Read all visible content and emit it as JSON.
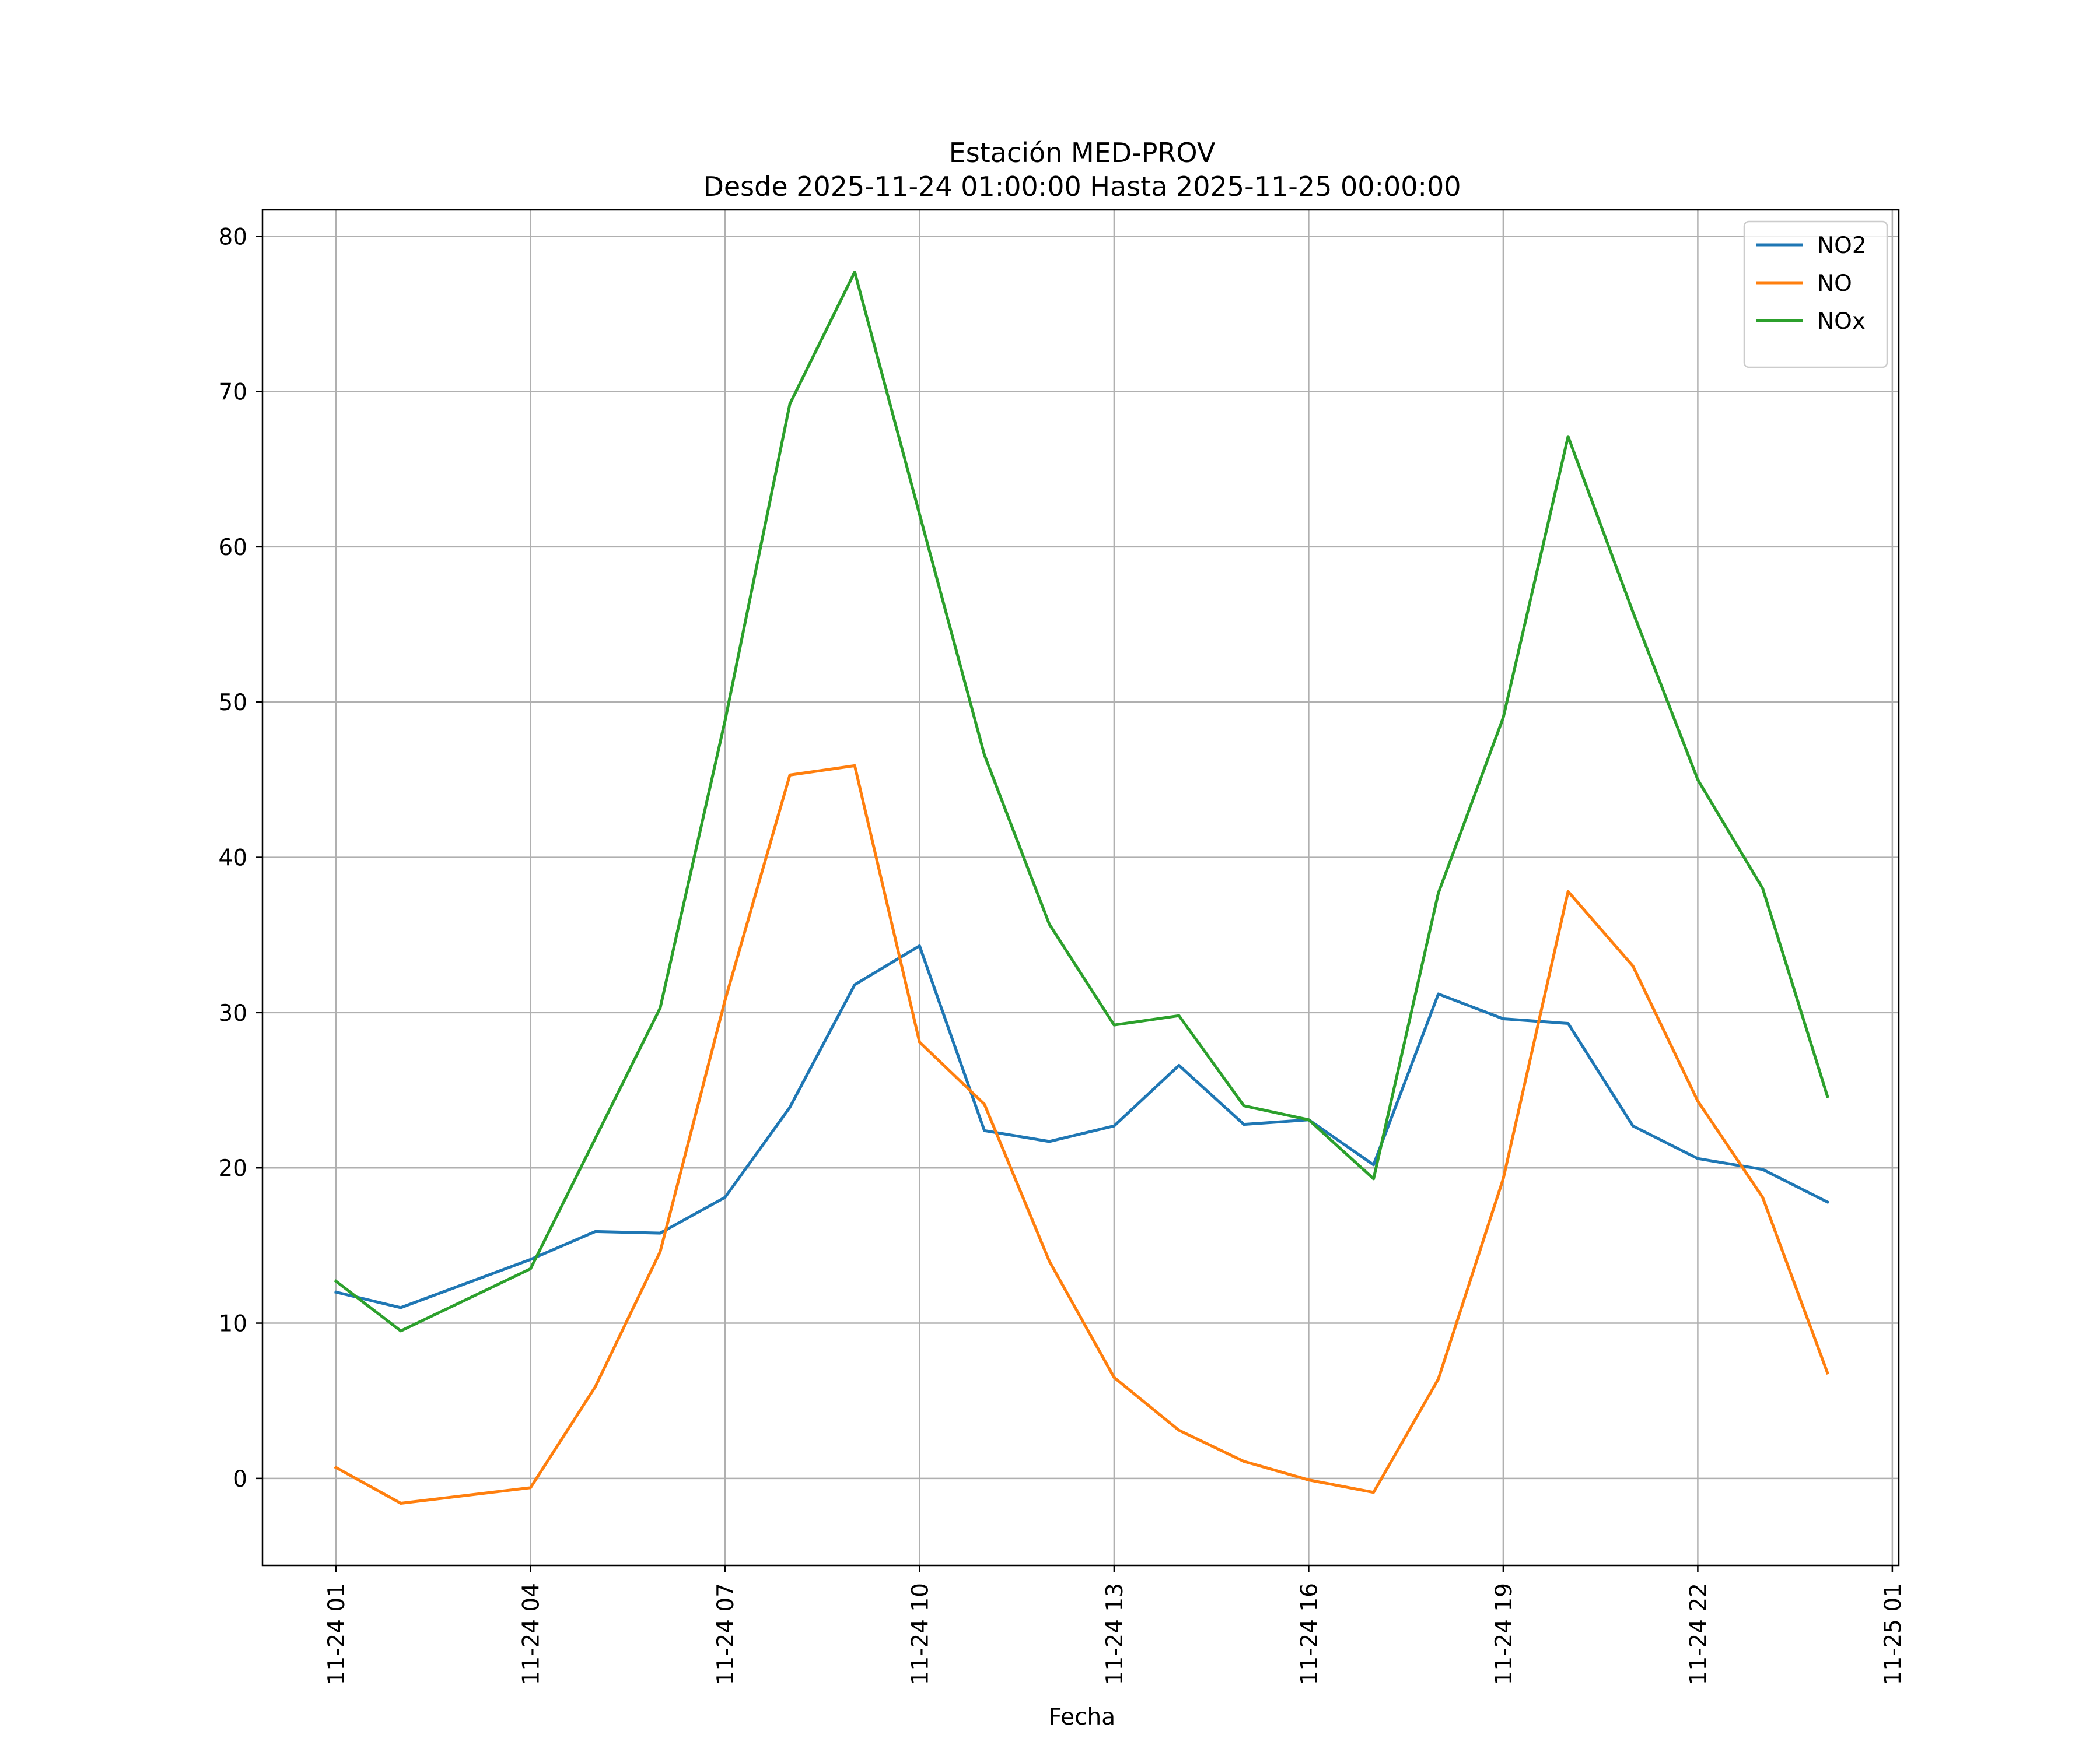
{
  "chart_data": {
    "type": "line",
    "title": "Estación MED-PROV",
    "subtitle": "Desde 2025-11-24 01:00:00 Hasta 2025-11-25 00:00:00",
    "xlabel": "Fecha",
    "ylabel": "",
    "x": [
      "2025-11-24 01:00",
      "2025-11-24 02:00",
      "2025-11-24 03:00",
      "2025-11-24 04:00",
      "2025-11-24 05:00",
      "2025-11-24 06:00",
      "2025-11-24 07:00",
      "2025-11-24 08:00",
      "2025-11-24 09:00",
      "2025-11-24 10:00",
      "2025-11-24 11:00",
      "2025-11-24 12:00",
      "2025-11-24 13:00",
      "2025-11-24 14:00",
      "2025-11-24 15:00",
      "2025-11-24 16:00",
      "2025-11-24 17:00",
      "2025-11-24 18:00",
      "2025-11-24 19:00",
      "2025-11-24 20:00",
      "2025-11-24 21:00",
      "2025-11-24 22:00",
      "2025-11-24 23:00",
      "2025-11-25 00:00"
    ],
    "series": [
      {
        "name": "NO2",
        "color": "#1f77b4",
        "values": [
          12.0,
          11.0,
          null,
          14.1,
          15.9,
          15.8,
          18.1,
          23.9,
          31.8,
          34.3,
          22.4,
          21.7,
          22.7,
          26.6,
          22.8,
          23.1,
          20.2,
          31.2,
          29.6,
          29.3,
          22.7,
          20.6,
          19.9,
          17.8
        ]
      },
      {
        "name": "NO",
        "color": "#ff7f0e",
        "values": [
          0.7,
          -1.6,
          null,
          -0.6,
          5.9,
          14.6,
          30.8,
          45.3,
          45.9,
          28.1,
          24.1,
          14.0,
          6.5,
          3.1,
          1.1,
          -0.1,
          -0.9,
          6.4,
          19.3,
          37.8,
          33.0,
          24.3,
          18.1,
          6.8
        ]
      },
      {
        "name": "NOx",
        "color": "#2ca02c",
        "values": [
          12.7,
          9.5,
          null,
          13.5,
          21.9,
          30.3,
          48.8,
          69.2,
          77.7,
          62.1,
          46.6,
          35.7,
          29.2,
          29.8,
          24.0,
          23.1,
          19.3,
          37.7,
          49.0,
          67.1,
          55.8,
          45.0,
          38.0,
          24.6
        ]
      }
    ],
    "x_tick_labels": [
      "11-24 01",
      "11-24 04",
      "11-24 07",
      "11-24 10",
      "11-24 13",
      "11-24 16",
      "11-24 19",
      "11-24 22",
      "11-25 01"
    ],
    "x_ticks": [
      "2025-11-24 01:00",
      "2025-11-24 04:00",
      "2025-11-24 07:00",
      "2025-11-24 10:00",
      "2025-11-24 13:00",
      "2025-11-24 16:00",
      "2025-11-24 19:00",
      "2025-11-24 22:00",
      "2025-11-25 01:00"
    ],
    "y_ticks": [
      0,
      10,
      20,
      30,
      40,
      50,
      60,
      70,
      80
    ],
    "xlim": [
      "2025-11-23 23:52",
      "2025-11-25 01:06"
    ],
    "ylim": [
      -5.6,
      81.7
    ],
    "grid": true,
    "legend": "top-right"
  }
}
